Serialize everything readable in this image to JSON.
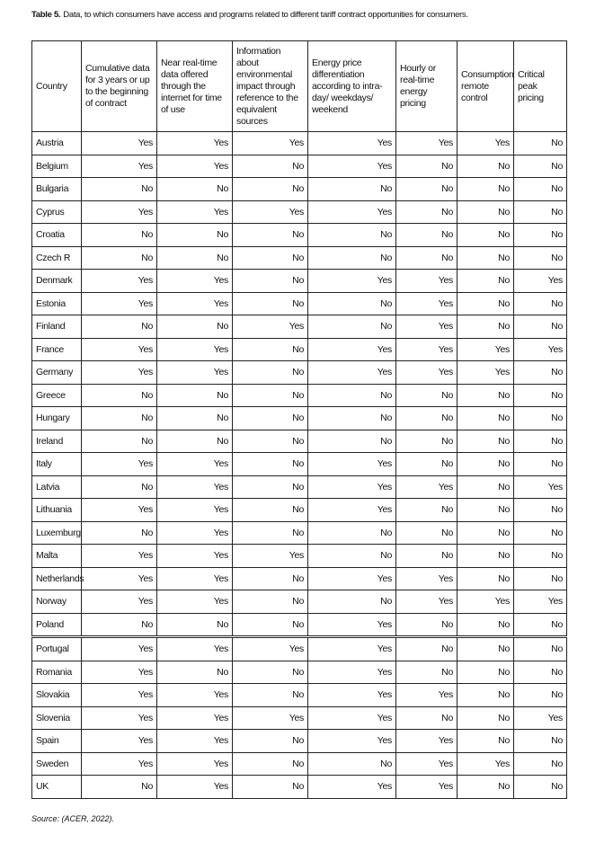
{
  "title": {
    "label": "Table 5.",
    "text": "Data, to which consumers have access and programs related to different tariff contract opportunities for consumers."
  },
  "table": {
    "header": [
      "Country",
      "Cumulative data for 3 years or up to the beginning of contract",
      "Near real-time data offered through the internet for time of use",
      "Information about environmental impact through reference to the equivalent sources",
      "Energy price differentiation according to intra-day/ weekdays/ weekend",
      "Hourly or real-time energy pricing",
      "Consumption remote control",
      "Critical peak pricing"
    ],
    "rows": [
      [
        "Austria",
        "Yes",
        "Yes",
        "Yes",
        "Yes",
        "Yes",
        "Yes",
        "No"
      ],
      [
        "Belgium",
        "Yes",
        "Yes",
        "No",
        "Yes",
        "No",
        "No",
        "No"
      ],
      [
        "Bulgaria",
        "No",
        "No",
        "No",
        "No",
        "No",
        "No",
        "No"
      ],
      [
        "Cyprus",
        "Yes",
        "Yes",
        "Yes",
        "Yes",
        "No",
        "No",
        "No"
      ],
      [
        "Croatia",
        "No",
        "No",
        "No",
        "No",
        "No",
        "No",
        "No"
      ],
      [
        "Czech R",
        "No",
        "No",
        "No",
        "No",
        "No",
        "No",
        "No"
      ],
      [
        "Denmark",
        "Yes",
        "Yes",
        "No",
        "Yes",
        "Yes",
        "No",
        "Yes"
      ],
      [
        "Estonia",
        "Yes",
        "Yes",
        "No",
        "No",
        "Yes",
        "No",
        "No"
      ],
      [
        "Finland",
        "No",
        "No",
        "Yes",
        "No",
        "Yes",
        "No",
        "No"
      ],
      [
        "France",
        "Yes",
        "Yes",
        "No",
        "Yes",
        "Yes",
        "Yes",
        "Yes"
      ],
      [
        "Germany",
        "Yes",
        "Yes",
        "No",
        "Yes",
        "Yes",
        "Yes",
        "No"
      ],
      [
        "Greece",
        "No",
        "No",
        "No",
        "No",
        "No",
        "No",
        "No"
      ],
      [
        "Hungary",
        "No",
        "No",
        "No",
        "No",
        "No",
        "No",
        "No"
      ],
      [
        "Ireland",
        "No",
        "No",
        "No",
        "No",
        "No",
        "No",
        "No"
      ],
      [
        "Italy",
        "Yes",
        "Yes",
        "No",
        "Yes",
        "No",
        "No",
        "No"
      ],
      [
        "Latvia",
        "No",
        "Yes",
        "No",
        "Yes",
        "Yes",
        "No",
        "Yes"
      ],
      [
        "Lithuania",
        "Yes",
        "Yes",
        "No",
        "Yes",
        "No",
        "No",
        "No"
      ],
      [
        "Luxemburg",
        "No",
        "Yes",
        "No",
        "No",
        "No",
        "No",
        "No"
      ],
      [
        "Malta",
        "Yes",
        "Yes",
        "Yes",
        "No",
        "No",
        "No",
        "No"
      ],
      [
        "Netherlands",
        "Yes",
        "Yes",
        "No",
        "Yes",
        "Yes",
        "No",
        "No"
      ],
      [
        "Norway",
        "Yes",
        "Yes",
        "No",
        "No",
        "Yes",
        "Yes",
        "Yes"
      ],
      [
        "Poland",
        "No",
        "No",
        "No",
        "Yes",
        "No",
        "No",
        "No"
      ],
      [
        "Portugal",
        "Yes",
        "Yes",
        "Yes",
        "Yes",
        "No",
        "No",
        "No"
      ],
      [
        "Romania",
        "Yes",
        "No",
        "No",
        "Yes",
        "No",
        "No",
        "No"
      ],
      [
        "Slovakia",
        "Yes",
        "Yes",
        "No",
        "Yes",
        "Yes",
        "No",
        "No"
      ],
      [
        "Slovenia",
        "Yes",
        "Yes",
        "Yes",
        "Yes",
        "No",
        "No",
        "Yes"
      ],
      [
        "Spain",
        "Yes",
        "Yes",
        "No",
        "Yes",
        "Yes",
        "No",
        "No"
      ],
      [
        "Sweden",
        "Yes",
        "Yes",
        "No",
        "No",
        "Yes",
        "Yes",
        "No"
      ],
      [
        "UK",
        "No",
        "Yes",
        "No",
        "Yes",
        "Yes",
        "No",
        "No"
      ]
    ]
  },
  "source": "Source: (ACER, 2022)."
}
